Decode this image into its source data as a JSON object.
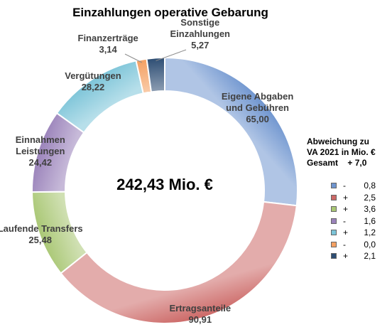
{
  "chart_data": {
    "type": "pie",
    "variant": "donut",
    "title": "Einzahlungen operative Gebarung",
    "center_label": "242,43 Mio. €",
    "slices": [
      {
        "label": [
          "Eigene Abgaben",
          "und Gebühren"
        ],
        "value": 65.0,
        "value_label": "65,00",
        "color": "#6f95cf"
      },
      {
        "label": [
          "Ertragsanteile"
        ],
        "value": 90.91,
        "value_label": "90,91",
        "color": "#cc6866"
      },
      {
        "label": [
          "Laufende Transfers"
        ],
        "value": 25.48,
        "value_label": "25,48",
        "color": "#a9c774"
      },
      {
        "label": [
          "Einnahmen",
          "Leistungen"
        ],
        "value": 24.42,
        "value_label": "24,42",
        "color": "#9a82ba"
      },
      {
        "label": [
          "Vergütungen"
        ],
        "value": 28.22,
        "value_label": "28,22",
        "color": "#7cc4d8"
      },
      {
        "label": [
          "Finanzerträge"
        ],
        "value": 3.14,
        "value_label": "3,14",
        "color": "#f4a062"
      },
      {
        "label": [
          "Sonstige",
          "Einzahlungen"
        ],
        "value": 5.27,
        "value_label": "5,27",
        "color": "#2d4d73"
      }
    ]
  },
  "deviation": {
    "title_lines": [
      "Abweichung zu",
      "VA 2021 in Mio. €"
    ],
    "total_label": "Gesamt",
    "total_value": "+ 7,0",
    "items": [
      {
        "sign": "-",
        "value": "0,8",
        "color": "#6f95cf"
      },
      {
        "sign": "+",
        "value": "2,5",
        "color": "#cc6866"
      },
      {
        "sign": "+",
        "value": "3,6",
        "color": "#a9c774"
      },
      {
        "sign": "-",
        "value": "1,6",
        "color": "#9a82ba"
      },
      {
        "sign": "+",
        "value": "1,2",
        "color": "#7cc4d8"
      },
      {
        "sign": "-",
        "value": "0,0",
        "color": "#f4a062"
      },
      {
        "sign": "+",
        "value": "2,1",
        "color": "#2d4d73"
      }
    ]
  }
}
